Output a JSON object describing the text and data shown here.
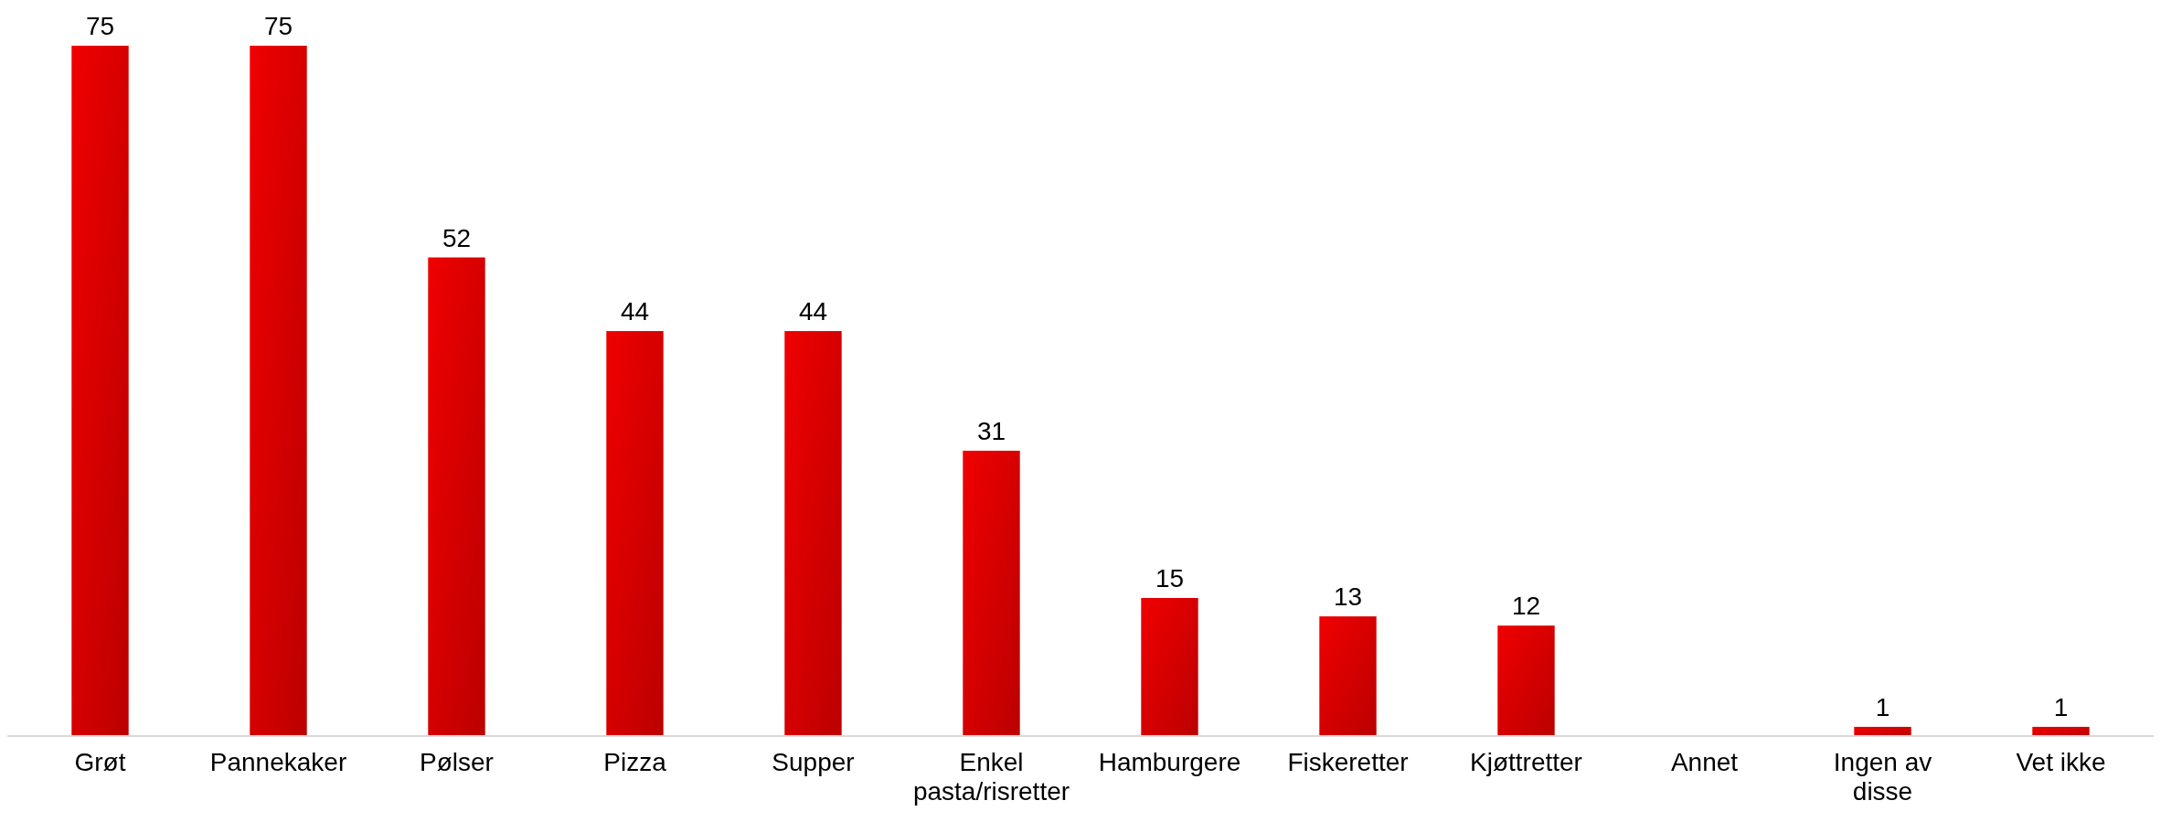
{
  "chart_data": {
    "type": "bar",
    "categories": [
      "Grøt",
      "Pannekaker",
      "Pølser",
      "Pizza",
      "Supper",
      "Enkel pasta/risretter",
      "Hamburgere",
      "Fiskeretter",
      "Kjøttretter",
      "Annet",
      "Ingen av disse",
      "Vet ikke"
    ],
    "values": [
      75,
      75,
      52,
      44,
      44,
      31,
      15,
      13,
      12,
      null,
      1,
      1
    ],
    "color": "#f00000",
    "data_labels": true
  }
}
